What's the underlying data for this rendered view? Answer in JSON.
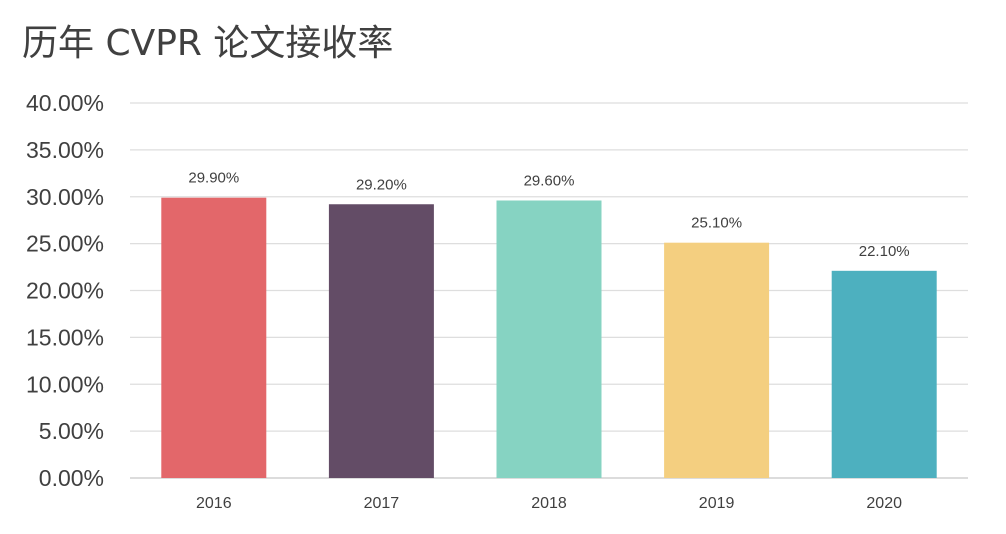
{
  "chart_data": {
    "type": "bar",
    "title": "历年 CVPR 论文接收率",
    "xlabel": "",
    "ylabel": "",
    "categories": [
      "2016",
      "2017",
      "2018",
      "2019",
      "2020"
    ],
    "values": [
      29.9,
      29.2,
      29.6,
      25.1,
      22.1
    ],
    "data_labels": [
      "29.90%",
      "29.20%",
      "29.60%",
      "25.10%",
      "22.10%"
    ],
    "bar_colors": [
      "#e3676a",
      "#634c66",
      "#86d3c2",
      "#f4cf80",
      "#4db0bf"
    ],
    "ylim": [
      0,
      40
    ],
    "yticks": [
      0,
      5,
      10,
      15,
      20,
      25,
      30,
      35,
      40
    ],
    "ytick_labels": [
      "0.00%",
      "5.00%",
      "10.00%",
      "15.00%",
      "20.00%",
      "25.00%",
      "30.00%",
      "35.00%",
      "40.00%"
    ],
    "grid": true,
    "legend": false
  }
}
